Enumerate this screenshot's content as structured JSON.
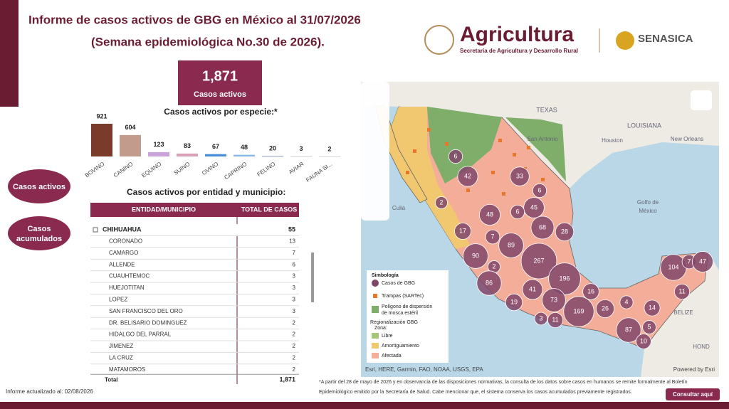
{
  "header": {
    "title_line1": "Informe de casos activos de GBG en México al 31/07/2026",
    "title_line2": "(Semana epidemiológica No.30 de 2026).",
    "logo_name": "Agricultura",
    "logo_subtitle": "Secretaría de Agricultura y Desarrollo Rural",
    "logo2": "SENASICA"
  },
  "kpi": {
    "value": "1,871",
    "label": "Casos activos"
  },
  "buttons": {
    "active": "Casos activos",
    "accumulated_line1": "Casos",
    "accumulated_line2": "acumulados",
    "consult": "Consultar aquí"
  },
  "chart_data": {
    "type": "bar",
    "title": "Casos activos por especie:*",
    "categories": [
      "BOVINO",
      "CANINO",
      "EQUINO",
      "SUINO",
      "OVINO",
      "CAPRINO",
      "FELINO",
      "AVIAR",
      "FAUNA SI..."
    ],
    "values": [
      921,
      604,
      123,
      83,
      67,
      48,
      20,
      3,
      2
    ],
    "colors": [
      "#7b3b2b",
      "#c39b8c",
      "#c9a3d9",
      "#d9a0b7",
      "#4a8fd6",
      "#8ab6e8",
      "#9aa0c8",
      "#a09aa0",
      "#b0a8b0"
    ]
  },
  "table": {
    "title": "Casos activos por entidad y municipio:",
    "columns": [
      "ENTIDAD/MUNICIPIO",
      "TOTAL DE CASOS"
    ],
    "group": [
      "CHIHUAHUA",
      55
    ],
    "rows": [
      [
        "CORONADO",
        13
      ],
      [
        "CAMARGO",
        7
      ],
      [
        "ALLENDE",
        6
      ],
      [
        "CUAUHTEMOC",
        3
      ],
      [
        "HUEJOTITAN",
        3
      ],
      [
        "LOPEZ",
        3
      ],
      [
        "SAN FRANCISCO DEL ORO",
        3
      ],
      [
        "DR. BELISARIO DOMINGUEZ",
        2
      ],
      [
        "HIDALGO DEL PARRAL",
        2
      ],
      [
        "JIMENEZ",
        2
      ],
      [
        "LA CRUZ",
        2
      ],
      [
        "MATAMOROS",
        2
      ]
    ],
    "total": [
      "Total",
      "1,871"
    ]
  },
  "map": {
    "bubbles": [
      6,
      42,
      2,
      33,
      6,
      45,
      48,
      6,
      17,
      7,
      68,
      28,
      89,
      90,
      2,
      267,
      196,
      86,
      41,
      19,
      73,
      16,
      169,
      26,
      4,
      14,
      3,
      11,
      87,
      5,
      10,
      104,
      7,
      47,
      11
    ],
    "places": [
      "TEXAS",
      "LOUISIANA",
      "San Antonio",
      "Houston",
      "New Orleans",
      "Golfo de",
      "México",
      "Culia",
      "BELIZE",
      "HOND"
    ],
    "legend": {
      "title": "Simbología",
      "cases": "Casos de GBG",
      "traps": "Trampas (SARTec)",
      "polygon_line1": "Polígono de dispersión",
      "polygon_line2": "de mosca estéril",
      "zone_line1": "Regionalización GBG",
      "zone_line2": "Zona:",
      "free": "Libre",
      "buffer": "Amortiguamiento",
      "affected": "Afectada"
    },
    "attribution": "Esri, HERE, Garmin, FAO, NOAA, USGS, EPA",
    "powered_by": "Powered by Esri"
  },
  "footer": {
    "updated": "Informe actualizado al: 02/08/2026",
    "note_line1": "*A partir del 28 de mayo de 2026 y en observancia de las disposiciones normativas, la consulta de los datos sobre casos en humanos se remite formalmente al Boletín",
    "note_line2": "Epidemiológico emitido por la Secretaría de Salud. Cabe mencionar que, el sistema conserva los casos acumulados previamente registrados."
  }
}
